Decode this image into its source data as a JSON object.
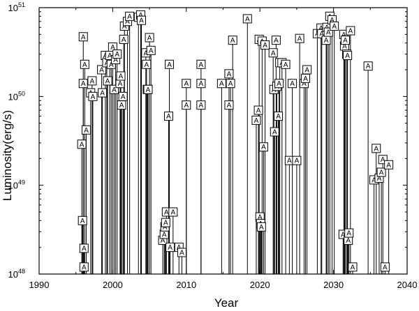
{
  "chart_data": {
    "type": "scatter",
    "title": "",
    "xlabel": "Year",
    "ylabel": "Luminosity(erg/s)",
    "xlim": [
      1990,
      2040
    ],
    "ylim": [
      1e+48,
      1e+51
    ],
    "yscale": "log",
    "xticks": [
      "1990",
      "2000",
      "2010",
      "2020",
      "2030",
      "2040"
    ],
    "yticks": [
      {
        "base": "10",
        "exp": "48"
      },
      {
        "base": "10",
        "exp": "49"
      },
      {
        "base": "10",
        "exp": "50"
      },
      {
        "base": "10",
        "exp": "51"
      }
    ],
    "marker_label": "A",
    "grid": false,
    "legend": "none",
    "series": [
      {
        "marker": "A",
        "points": [
          {
            "x": 1995.8,
            "y": 2.9e+49
          },
          {
            "x": 1995.9,
            "y": 4e+48
          },
          {
            "x": 1996.0,
            "y": 1.4e+50
          },
          {
            "x": 1996.0,
            "y": 4.7e+50
          },
          {
            "x": 1996.1,
            "y": 1.95e+48
          },
          {
            "x": 1996.1,
            "y": 1.2e+48
          },
          {
            "x": 1996.2,
            "y": 2.3e+50
          },
          {
            "x": 1996.4,
            "y": 4.2e+49
          },
          {
            "x": 1997.0,
            "y": 1.1e+50
          },
          {
            "x": 1997.2,
            "y": 1.5e+50
          },
          {
            "x": 1997.3,
            "y": 1e+50
          },
          {
            "x": 1998.5,
            "y": 2e+50
          },
          {
            "x": 1998.6,
            "y": 1.1e+50
          },
          {
            "x": 1999.0,
            "y": 2.9e+50
          },
          {
            "x": 1999.2,
            "y": 2.4e+50
          },
          {
            "x": 1999.3,
            "y": 1.5e+50
          },
          {
            "x": 1999.6,
            "y": 2.9e+50
          },
          {
            "x": 1999.8,
            "y": 2.3e+50
          },
          {
            "x": 2000.0,
            "y": 3.6e+50
          },
          {
            "x": 2000.2,
            "y": 1.2e+50
          },
          {
            "x": 2000.4,
            "y": 2.6e+50
          },
          {
            "x": 2000.6,
            "y": 3e+50
          },
          {
            "x": 2001.0,
            "y": 1.4e+50
          },
          {
            "x": 2001.1,
            "y": 1.7e+50
          },
          {
            "x": 2001.2,
            "y": 8e+49
          },
          {
            "x": 2001.4,
            "y": 1e+50
          },
          {
            "x": 2001.5,
            "y": 4.4e+50
          },
          {
            "x": 2001.6,
            "y": 6.2e+50
          },
          {
            "x": 2002.0,
            "y": 7e+50
          },
          {
            "x": 2002.3,
            "y": 8e+50
          },
          {
            "x": 2003.5,
            "y": 7.8e+50
          },
          {
            "x": 2003.8,
            "y": 8.3e+50
          },
          {
            "x": 2003.9,
            "y": 7.2e+50
          },
          {
            "x": 2004.5,
            "y": 3.1e+50
          },
          {
            "x": 2004.6,
            "y": 2.3e+50
          },
          {
            "x": 2004.7,
            "y": 1.2e+50
          },
          {
            "x": 2004.8,
            "y": 1.2e+50
          },
          {
            "x": 2005.0,
            "y": 4.6e+50
          },
          {
            "x": 2005.2,
            "y": 3.3e+50
          },
          {
            "x": 2006.8,
            "y": 2.4e+48
          },
          {
            "x": 2007.0,
            "y": 2.8e+48
          },
          {
            "x": 2007.1,
            "y": 3.4e+48
          },
          {
            "x": 2007.2,
            "y": 3.8e+48
          },
          {
            "x": 2007.3,
            "y": 5e+48
          },
          {
            "x": 2007.6,
            "y": 6e+49
          },
          {
            "x": 2007.7,
            "y": 2.3e+50
          },
          {
            "x": 2007.8,
            "y": 2e+48
          },
          {
            "x": 2008.2,
            "y": 5e+48
          },
          {
            "x": 2009.0,
            "y": 2e+48
          },
          {
            "x": 2009.4,
            "y": 1.75e+48
          },
          {
            "x": 2010.0,
            "y": 1.4e+50
          },
          {
            "x": 2010.0,
            "y": 8e+49
          },
          {
            "x": 2012.0,
            "y": 2.3e+50
          },
          {
            "x": 2012.0,
            "y": 1.4e+50
          },
          {
            "x": 2012.0,
            "y": 8e+49
          },
          {
            "x": 2014.8,
            "y": 1.4e+50
          },
          {
            "x": 2015.8,
            "y": 1.8e+50
          },
          {
            "x": 2015.8,
            "y": 8e+49
          },
          {
            "x": 2016.0,
            "y": 1.4e+50
          },
          {
            "x": 2016.3,
            "y": 4.3e+50
          },
          {
            "x": 2018.3,
            "y": 7.5e+50
          },
          {
            "x": 2019.5,
            "y": 5.4e+49
          },
          {
            "x": 2019.8,
            "y": 7e+49
          },
          {
            "x": 2019.9,
            "y": 4.4e+50
          },
          {
            "x": 2020.0,
            "y": 4.4e+48
          },
          {
            "x": 2020.1,
            "y": 3.7e+48
          },
          {
            "x": 2020.2,
            "y": 3.4e+48
          },
          {
            "x": 2020.3,
            "y": 4.2e+50
          },
          {
            "x": 2020.5,
            "y": 2.7e+49
          },
          {
            "x": 2020.7,
            "y": 3.8e+50
          },
          {
            "x": 2021.8,
            "y": 3.1e+50
          },
          {
            "x": 2021.9,
            "y": 1.2e+50
          },
          {
            "x": 2022.0,
            "y": 4e+49
          },
          {
            "x": 2022.2,
            "y": 4.3e+50
          },
          {
            "x": 2022.3,
            "y": 1.3e+50
          },
          {
            "x": 2022.5,
            "y": 6e+49
          },
          {
            "x": 2022.6,
            "y": 1.4e+50
          },
          {
            "x": 2022.7,
            "y": 2.4e+50
          },
          {
            "x": 2023.0,
            "y": 2.4e+50
          },
          {
            "x": 2023.5,
            "y": 2.3e+50
          },
          {
            "x": 2024.0,
            "y": 1.9e+49
          },
          {
            "x": 2024.4,
            "y": 1.4e+50
          },
          {
            "x": 2025.0,
            "y": 1.9e+49
          },
          {
            "x": 2025.4,
            "y": 4.5e+50
          },
          {
            "x": 2026.0,
            "y": 1.4e+50
          },
          {
            "x": 2026.2,
            "y": 1.6e+50
          },
          {
            "x": 2026.4,
            "y": 2e+50
          },
          {
            "x": 2027.8,
            "y": 5.1e+50
          },
          {
            "x": 2028.3,
            "y": 5.9e+50
          },
          {
            "x": 2028.4,
            "y": 5.1e+50
          },
          {
            "x": 2029.0,
            "y": 4.3e+50
          },
          {
            "x": 2029.1,
            "y": 6e+50
          },
          {
            "x": 2029.3,
            "y": 5.3e+50
          },
          {
            "x": 2029.5,
            "y": 8e+50
          },
          {
            "x": 2029.8,
            "y": 7.3e+50
          },
          {
            "x": 2030.1,
            "y": 6.2e+50
          },
          {
            "x": 2031.3,
            "y": 2.8e+48
          },
          {
            "x": 2031.4,
            "y": 5e+50
          },
          {
            "x": 2031.5,
            "y": 3.7e+50
          },
          {
            "x": 2031.6,
            "y": 4.3e+50
          },
          {
            "x": 2031.8,
            "y": 3e+50
          },
          {
            "x": 2031.9,
            "y": 2.9e+50
          },
          {
            "x": 2032.0,
            "y": 2.4e+48
          },
          {
            "x": 2032.1,
            "y": 2.9e+48
          },
          {
            "x": 2032.3,
            "y": 5.5e+50
          },
          {
            "x": 2032.6,
            "y": 1.2e+48
          },
          {
            "x": 2034.7,
            "y": 2.2e+50
          },
          {
            "x": 2035.5,
            "y": 1.15e+49
          },
          {
            "x": 2035.8,
            "y": 2.6e+49
          },
          {
            "x": 2036.2,
            "y": 1.2e+49
          },
          {
            "x": 2036.5,
            "y": 1.4e+49
          },
          {
            "x": 2036.7,
            "y": 1.95e+49
          },
          {
            "x": 2037.0,
            "y": 1.2e+48
          },
          {
            "x": 2037.5,
            "y": 1.7e+49
          }
        ]
      }
    ]
  }
}
